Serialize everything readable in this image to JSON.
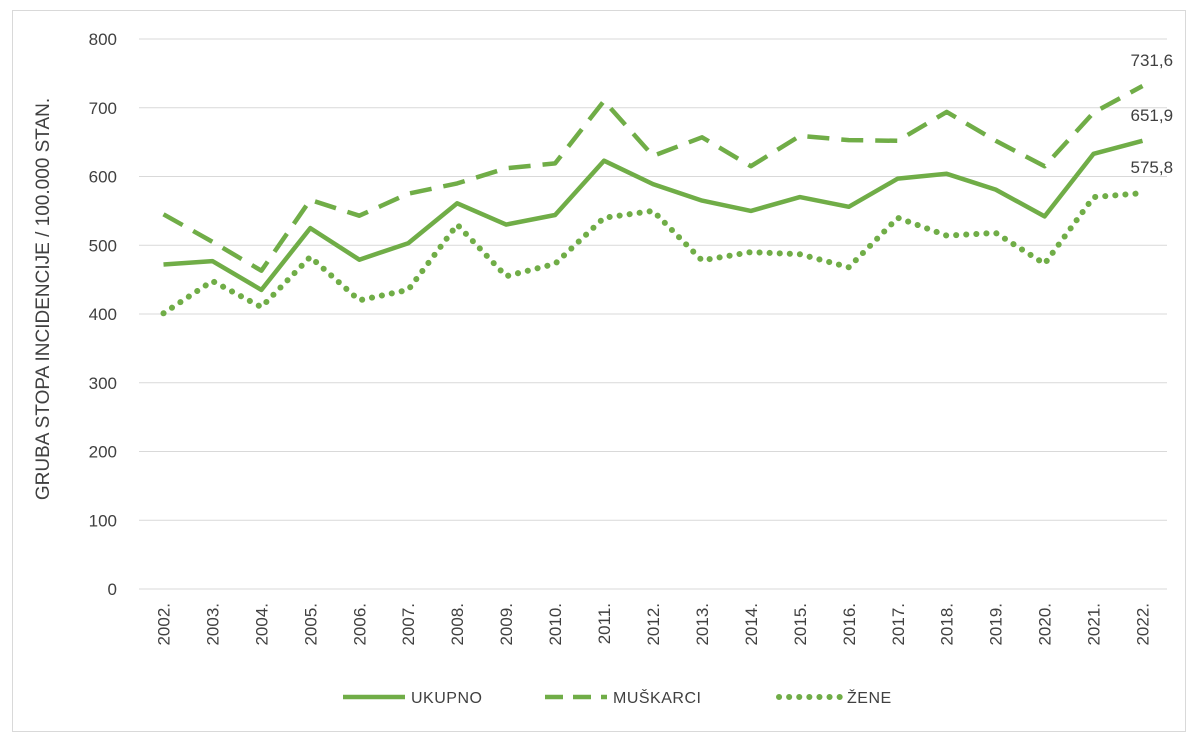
{
  "chart_data": {
    "type": "line",
    "ylabel": "GRUBA STOPA INCIDENCIJE / 100.000 STAN.",
    "xlabel": "",
    "ylim": [
      0,
      800
    ],
    "yticks": [
      "0",
      "100",
      "200",
      "300",
      "400",
      "500",
      "600",
      "700",
      "800"
    ],
    "categories": [
      "2002.",
      "2003.",
      "2004.",
      "2005.",
      "2006.",
      "2007.",
      "2008.",
      "2009.",
      "2010.",
      "2011.",
      "2012.",
      "2013.",
      "2014.",
      "2015.",
      "2016.",
      "2017.",
      "2018.",
      "2019.",
      "2020.",
      "2021.",
      "2022."
    ],
    "grid": true,
    "legend_position": "bottom",
    "line_color": "#70ad47",
    "series": [
      {
        "name": "UKUPNO",
        "style": "solid",
        "values": [
          472,
          477,
          435,
          525,
          479,
          503,
          561,
          530,
          544,
          623,
          589,
          565,
          550,
          570,
          556,
          597,
          604,
          581,
          542,
          633,
          651.9
        ],
        "end_label": "651,9"
      },
      {
        "name": "MUŠKARCI",
        "style": "dashed",
        "values": [
          545,
          505,
          463,
          566,
          543,
          575,
          590,
          612,
          619,
          710,
          630,
          657,
          615,
          659,
          653,
          652,
          694,
          652,
          615,
          693,
          731.6
        ],
        "end_label": "731,6"
      },
      {
        "name": "ŽENE",
        "style": "dotted",
        "values": [
          401,
          448,
          410,
          483,
          420,
          435,
          530,
          455,
          473,
          540,
          550,
          478,
          490,
          487,
          468,
          540,
          514,
          518,
          473,
          570,
          575.8
        ],
        "end_label": "575,8"
      }
    ]
  }
}
